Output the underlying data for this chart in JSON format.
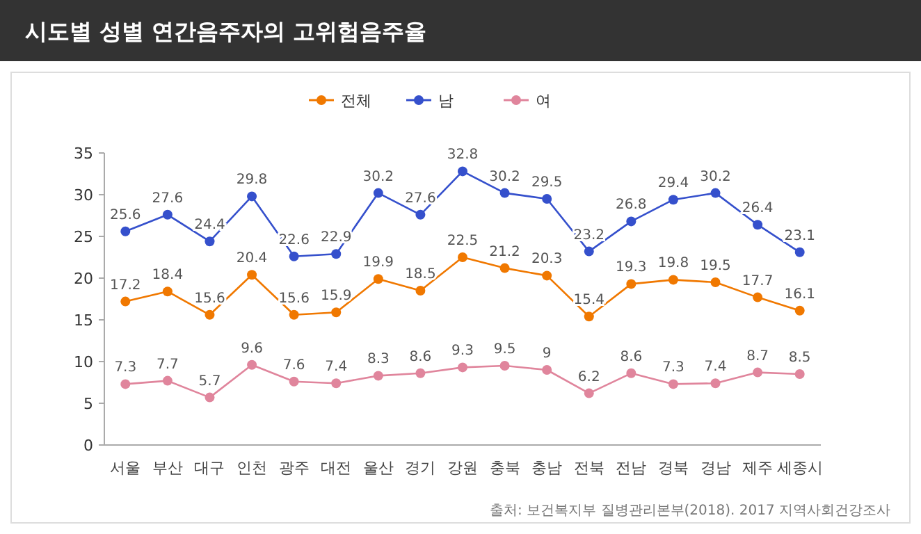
{
  "chart_data": {
    "type": "line",
    "title": "시도별 성별 연간음주자의 고위험음주율",
    "categories": [
      "서울",
      "부산",
      "대구",
      "인천",
      "광주",
      "대전",
      "울산",
      "경기",
      "강원",
      "충북",
      "충남",
      "전북",
      "전남",
      "경북",
      "경남",
      "제주",
      "세종시"
    ],
    "series": [
      {
        "name": "전체",
        "color": "#f07800",
        "values": [
          17.2,
          18.4,
          15.6,
          20.4,
          15.6,
          15.9,
          19.9,
          18.5,
          22.5,
          21.2,
          20.3,
          15.4,
          19.3,
          19.8,
          19.5,
          17.7,
          16.1
        ]
      },
      {
        "name": "남",
        "color": "#3550cc",
        "values": [
          25.6,
          27.6,
          24.4,
          29.8,
          22.6,
          22.9,
          30.2,
          27.6,
          32.8,
          30.2,
          29.5,
          23.2,
          26.8,
          29.4,
          30.2,
          26.4,
          23.1
        ]
      },
      {
        "name": "여",
        "color": "#e0859c",
        "values": [
          7.3,
          7.7,
          5.7,
          9.6,
          7.6,
          7.4,
          8.3,
          8.6,
          9.3,
          9.5,
          9,
          6.2,
          8.6,
          7.3,
          7.4,
          8.7,
          8.5
        ]
      }
    ],
    "ylim": [
      0,
      35
    ],
    "yticks": [
      0,
      5,
      10,
      15,
      20,
      25,
      30,
      35
    ],
    "data_labels": true,
    "marker": "circle",
    "legend": "top",
    "grid": false,
    "annotations": [
      "출처: 보건복지부 질병관리본부(2018). 2017 지역사회건강조사"
    ]
  }
}
